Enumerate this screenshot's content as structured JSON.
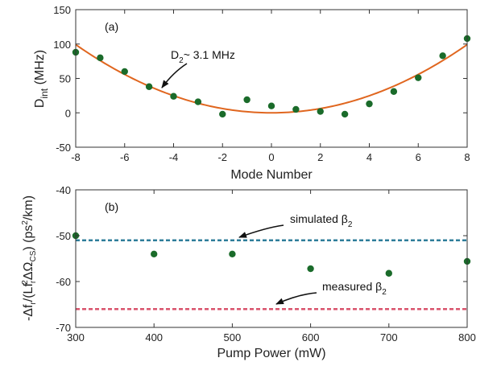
{
  "chart_data": [
    {
      "type": "scatter",
      "panel_label": "(a)",
      "xlabel": "Mode Number",
      "ylabel": {
        "main": "D",
        "sub": "int",
        "rest": " (MHz)"
      },
      "xlim": [
        -8,
        8
      ],
      "ylim": [
        -50,
        150
      ],
      "xticks": [
        "-8",
        "-6",
        "-4",
        "-2",
        "0",
        "2",
        "4",
        "6",
        "8"
      ],
      "yticks": [
        "-50",
        "0",
        "50",
        "100",
        "150"
      ],
      "grid": false,
      "series": [
        {
          "kind": "points",
          "color": "#1a6b2a",
          "x": [
            -8,
            -7,
            -6,
            -5,
            -4,
            -3,
            -2,
            -1,
            0,
            1,
            2,
            3,
            4,
            5,
            6,
            7,
            8
          ],
          "y": [
            88,
            80,
            60,
            38,
            24,
            16,
            -2,
            19,
            10,
            5,
            2,
            -2,
            13,
            31,
            51,
            83,
            108
          ]
        },
        {
          "kind": "fit",
          "color": "#e0661f",
          "coef": 1.55
        }
      ],
      "annotation": {
        "main": "D",
        "sub": "2",
        "rest": "~ 3.1 MHz"
      }
    },
    {
      "type": "scatter",
      "panel_label": "(b)",
      "xlabel": "Pump Power (mW)",
      "ylabel": {
        "a": "-Δf",
        "b": "r",
        "c": "/(Lf",
        "d": "r",
        "e": "2",
        "f": "ΔΩ",
        "g": "CS",
        "h": ") (ps",
        "i": "2",
        "j": "/km)"
      },
      "xlim": [
        300,
        800
      ],
      "ylim": [
        -70,
        -40
      ],
      "xticks": [
        "300",
        "400",
        "500",
        "600",
        "700",
        "800"
      ],
      "yticks": [
        "-70",
        "-60",
        "-50",
        "-40"
      ],
      "grid": false,
      "series": [
        {
          "kind": "points",
          "color": "#1a6b2a",
          "x": [
            300,
            400,
            500,
            600,
            700,
            800
          ],
          "y": [
            -50,
            -54,
            -54,
            -57.2,
            -58.2,
            -55.6
          ]
        },
        {
          "kind": "hline",
          "name": "simulated",
          "color": "#2e7d9a",
          "y": -51
        },
        {
          "kind": "hline",
          "name": "measured",
          "color": "#d9536c",
          "y": -66
        }
      ],
      "annotations": [
        {
          "main": "simulated β",
          "sub": "2"
        },
        {
          "main": "measured β",
          "sub": "2"
        }
      ]
    }
  ]
}
